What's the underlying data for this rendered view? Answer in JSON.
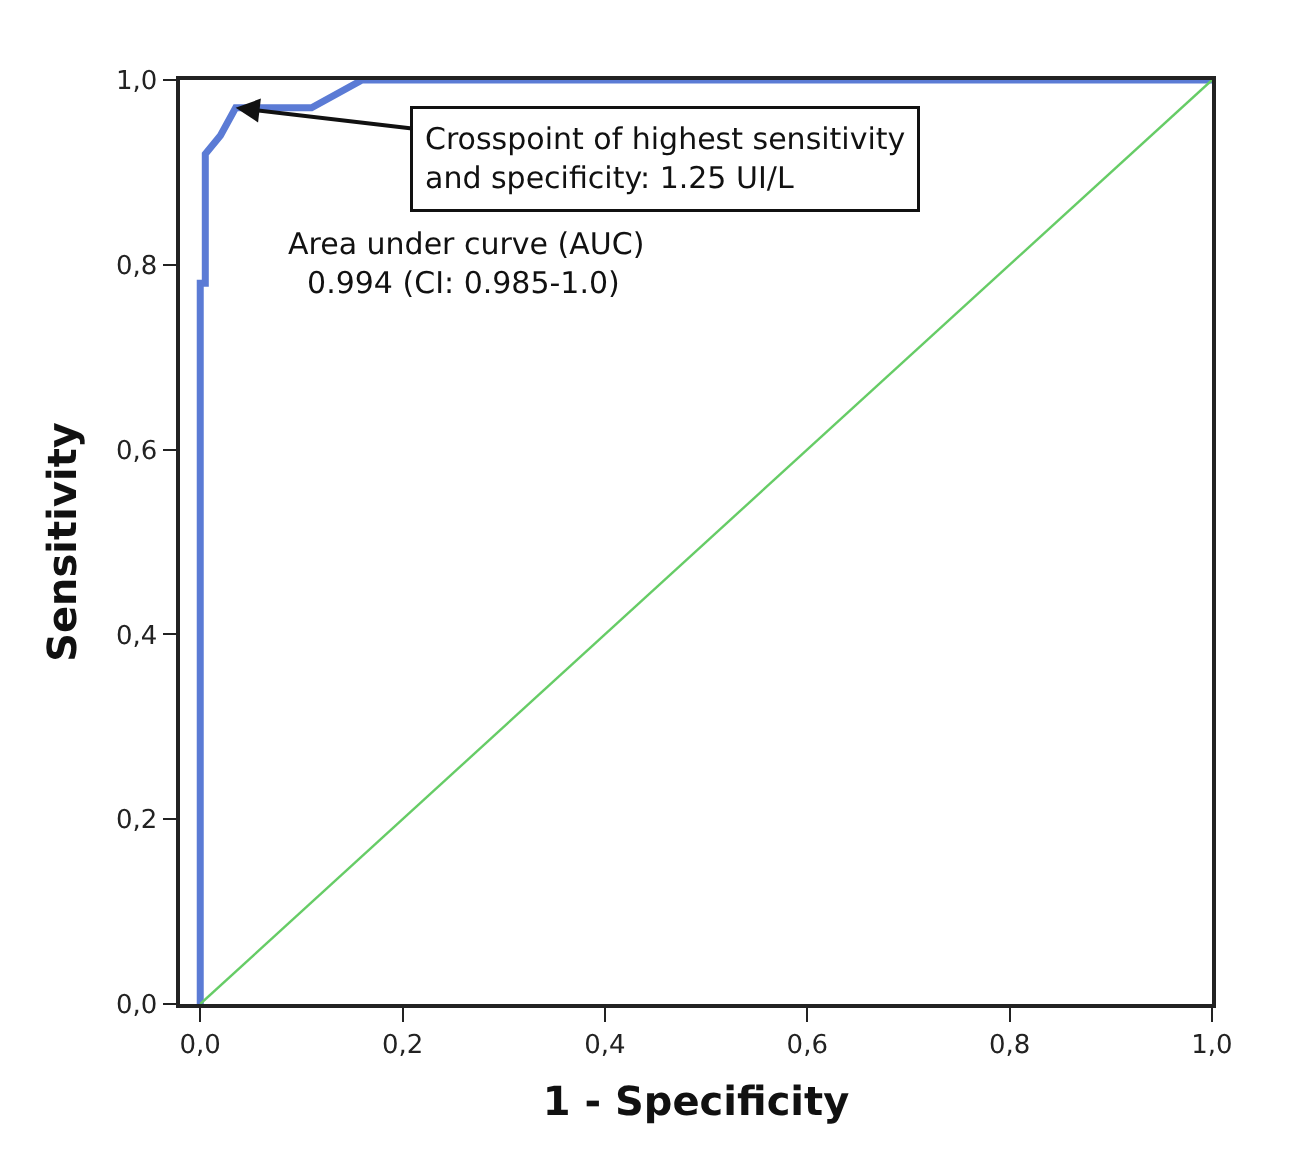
{
  "chart_data": {
    "type": "line",
    "xlabel": "1 - Specificity",
    "ylabel": "Sensitivity",
    "xlim": [
      -0.02,
      1.0
    ],
    "ylim": [
      0,
      1.0
    ],
    "xticks": [
      {
        "value": 0,
        "label": "0,0"
      },
      {
        "value": 0.2,
        "label": "0,2"
      },
      {
        "value": 0.4,
        "label": "0,4"
      },
      {
        "value": 0.6,
        "label": "0,6"
      },
      {
        "value": 0.8,
        "label": "0,8"
      },
      {
        "value": 1.0,
        "label": "1,0"
      }
    ],
    "yticks": [
      {
        "value": 0,
        "label": "0,0"
      },
      {
        "value": 0.2,
        "label": "0,2"
      },
      {
        "value": 0.4,
        "label": "0,4"
      },
      {
        "value": 0.6,
        "label": "0,6"
      },
      {
        "value": 0.8,
        "label": "0,8"
      },
      {
        "value": 1.0,
        "label": "1,0"
      }
    ],
    "series": [
      {
        "color": "#5b7bd5",
        "x": [
          0,
          0,
          0.005,
          0.005,
          0.02,
          0.035,
          0.11,
          0.16,
          1.0
        ],
        "values": [
          0,
          0.78,
          0.78,
          0.92,
          0.94,
          0.97,
          0.97,
          1.0,
          1.0
        ]
      },
      {
        "color": "#66cc66",
        "x": [
          0,
          1.0
        ],
        "values": [
          0,
          1.0
        ]
      }
    ],
    "annotations": [
      {
        "text": "Crosspoint of highest sensitivity\nand specificity: 1.25 UI/L",
        "x": 0.035,
        "y": 0.97
      },
      "Area under curve (AUC)\n  0.994 (CI: 0.985-1.0)"
    ],
    "marker": "none",
    "line_style": "solid"
  }
}
